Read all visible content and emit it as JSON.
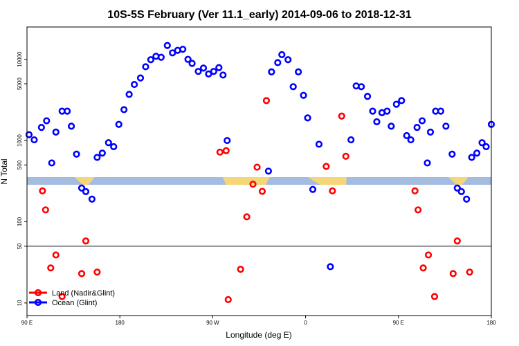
{
  "chart_data": {
    "type": "scatter",
    "title": "10S-5S February (Ver 11.1_early)   2014-09-06 to 2018-12-31",
    "xlabel": "Longitude (deg E)",
    "ylabel": "N Total",
    "x_ticks": [
      {
        "value": 90,
        "label": "90 E"
      },
      {
        "value": 180,
        "label": "180"
      },
      {
        "value": 270,
        "label": "90 W"
      },
      {
        "value": 360,
        "label": "0"
      },
      {
        "value": 450,
        "label": "90 E"
      },
      {
        "value": 540,
        "label": "180"
      }
    ],
    "xlim": [
      90,
      540
    ],
    "y_scale": "log",
    "ylim": [
      7,
      25000
    ],
    "y_ticks": [
      {
        "value": 10,
        "label": "10"
      },
      {
        "value": 50,
        "label": "50"
      },
      {
        "value": 100,
        "label": "100"
      },
      {
        "value": 500,
        "label": "500"
      },
      {
        "value": 1000,
        "label": "1000"
      },
      {
        "value": 5000,
        "label": "5000"
      },
      {
        "value": 10000,
        "label": "10000"
      }
    ],
    "reference_line_y": 50,
    "legend_position": "bottom-left",
    "series": [
      {
        "name": "Land (Nadir&Glint)",
        "color": "#ff0000",
        "points": [
          [
            105,
            240
          ],
          [
            108,
            140
          ],
          [
            113,
            27
          ],
          [
            118,
            39
          ],
          [
            124,
            12
          ],
          [
            143,
            23
          ],
          [
            147,
            58
          ],
          [
            158,
            24
          ],
          [
            277,
            720
          ],
          [
            283,
            750
          ],
          [
            285,
            11
          ],
          [
            297,
            26
          ],
          [
            303,
            115
          ],
          [
            309,
            290
          ],
          [
            313,
            470
          ],
          [
            318,
            237
          ],
          [
            322,
            3100
          ],
          [
            380,
            480
          ],
          [
            386,
            240
          ],
          [
            395,
            2000
          ],
          [
            399,
            640
          ],
          [
            466,
            240
          ],
          [
            469,
            140
          ],
          [
            474,
            27
          ],
          [
            479,
            39
          ],
          [
            485,
            12
          ],
          [
            503,
            23
          ],
          [
            507,
            58
          ],
          [
            519,
            24
          ]
        ]
      },
      {
        "name": "Ocean (Glint)",
        "color": "#0000ff",
        "points": [
          [
            92,
            1180
          ],
          [
            97,
            1020
          ],
          [
            104,
            1450
          ],
          [
            109,
            1750
          ],
          [
            114,
            530
          ],
          [
            118,
            1270
          ],
          [
            124,
            2300
          ],
          [
            129,
            2300
          ],
          [
            133,
            1500
          ],
          [
            138,
            680
          ],
          [
            143,
            260
          ],
          [
            147,
            235
          ],
          [
            153,
            190
          ],
          [
            158,
            620
          ],
          [
            163,
            700
          ],
          [
            169,
            940
          ],
          [
            174,
            840
          ],
          [
            179,
            1580
          ],
          [
            184,
            2400
          ],
          [
            189,
            3700
          ],
          [
            194,
            4900
          ],
          [
            200,
            5900
          ],
          [
            205,
            8100
          ],
          [
            210,
            9900
          ],
          [
            215,
            10900
          ],
          [
            220,
            10600
          ],
          [
            226,
            14800
          ],
          [
            231,
            12000
          ],
          [
            236,
            12900
          ],
          [
            241,
            13300
          ],
          [
            246,
            10000
          ],
          [
            250,
            8900
          ],
          [
            256,
            7100
          ],
          [
            261,
            7800
          ],
          [
            266,
            6600
          ],
          [
            271,
            7100
          ],
          [
            276,
            7900
          ],
          [
            280,
            6400
          ],
          [
            284,
            1000
          ],
          [
            324,
            420
          ],
          [
            327,
            7000
          ],
          [
            333,
            9100
          ],
          [
            337,
            11400
          ],
          [
            343,
            9900
          ],
          [
            348,
            4600
          ],
          [
            353,
            7000
          ],
          [
            358,
            3600
          ],
          [
            362,
            1900
          ],
          [
            367,
            250
          ],
          [
            373,
            900
          ],
          [
            384,
            28
          ],
          [
            404,
            1020
          ],
          [
            409,
            4700
          ],
          [
            414,
            4600
          ],
          [
            420,
            3500
          ],
          [
            425,
            2300
          ],
          [
            429,
            1700
          ],
          [
            434,
            2200
          ],
          [
            439,
            2300
          ],
          [
            443,
            1500
          ],
          [
            448,
            2800
          ],
          [
            453,
            3100
          ],
          [
            458,
            1150
          ],
          [
            462,
            1020
          ],
          [
            468,
            1450
          ],
          [
            473,
            1750
          ],
          [
            478,
            530
          ],
          [
            481,
            1270
          ],
          [
            486,
            2300
          ],
          [
            491,
            2300
          ],
          [
            496,
            1500
          ],
          [
            502,
            680
          ],
          [
            507,
            260
          ],
          [
            511,
            235
          ],
          [
            516,
            190
          ],
          [
            521,
            620
          ],
          [
            526,
            700
          ],
          [
            531,
            940
          ],
          [
            535,
            840
          ],
          [
            540,
            1580
          ]
        ]
      }
    ]
  }
}
